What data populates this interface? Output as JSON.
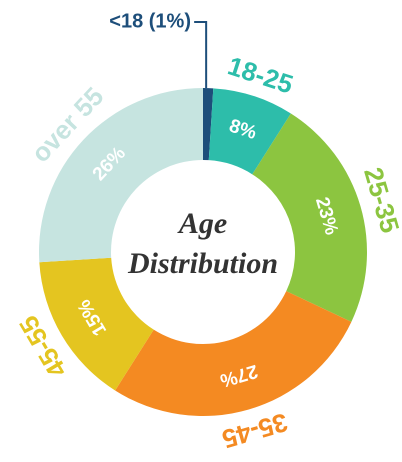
{
  "chart_data": {
    "type": "donut",
    "title": [
      "Age",
      "Distribution"
    ],
    "categories": [
      null,
      "18-25",
      "25-35",
      "35-45",
      "45-55",
      "over 55"
    ],
    "values": [
      1,
      8,
      23,
      27,
      15,
      26
    ],
    "value_labels": [
      "<18 (1%)",
      "8%",
      "23%",
      "27%",
      "15%",
      "26%"
    ],
    "colors": [
      "#1d4e7a",
      "#2dbdaa",
      "#8cc540",
      "#f48a22",
      "#e4c520",
      "#c6e4e0"
    ]
  }
}
